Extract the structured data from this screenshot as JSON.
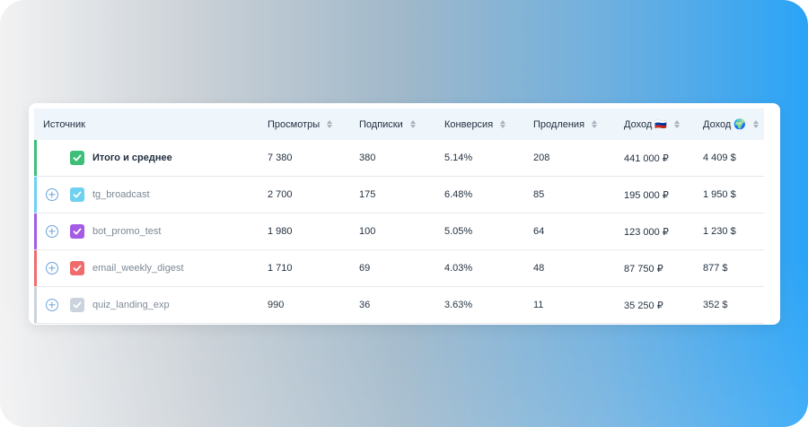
{
  "table": {
    "columns": [
      {
        "label": "Источник",
        "sortable": false
      },
      {
        "label": "Просмотры",
        "sortable": true
      },
      {
        "label": "Подписки",
        "sortable": true
      },
      {
        "label": "Конверсия",
        "sortable": true
      },
      {
        "label": "Продления",
        "sortable": true
      },
      {
        "label": "Доход 🇷🇺",
        "sortable": true
      },
      {
        "label": "Доход 🌍",
        "sortable": true
      }
    ],
    "rows": [
      {
        "source": "Итого и среднее",
        "accent": "#3dbf7a",
        "expandable": false,
        "checked": true,
        "views": "7 380",
        "subs": "380",
        "conversion": "5.14%",
        "renewals": "208",
        "revenue_rub": "441 000 ₽",
        "revenue_usd": "4 409 $"
      },
      {
        "source": "tg_broadcast",
        "accent": "#6fd1f0",
        "expandable": true,
        "checked": true,
        "views": "2 700",
        "subs": "175",
        "conversion": "6.48%",
        "renewals": "85",
        "revenue_rub": "195 000 ₽",
        "revenue_usd": "1 950 $"
      },
      {
        "source": "bot_promo_test",
        "accent": "#a45be6",
        "expandable": true,
        "checked": true,
        "views": "1 980",
        "subs": "100",
        "conversion": "5.05%",
        "renewals": "64",
        "revenue_rub": "123 000 ₽",
        "revenue_usd": "1 230 $"
      },
      {
        "source": "email_weekly_digest",
        "accent": "#f06a6a",
        "expandable": true,
        "checked": true,
        "views": "1 710",
        "subs": "69",
        "conversion": "4.03%",
        "renewals": "48",
        "revenue_rub": "87 750 ₽",
        "revenue_usd": "877 $"
      },
      {
        "source": "quiz_landing_exp",
        "accent": "#c9d2dc",
        "expandable": true,
        "checked": true,
        "views": "990",
        "subs": "36",
        "conversion": "3.63%",
        "renewals": "11",
        "revenue_rub": "35 250 ₽",
        "revenue_usd": "352 $"
      }
    ]
  },
  "colors": {
    "header_bg": "#eef5fb",
    "plus_icon": "#6aa2d8",
    "text": "#1f2d3d"
  }
}
